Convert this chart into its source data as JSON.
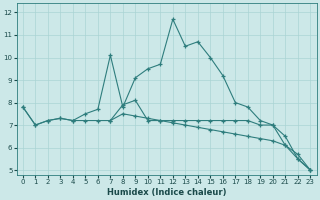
{
  "xlabel": "Humidex (Indice chaleur)",
  "bg_color": "#cce8e8",
  "line_color": "#2e7d7d",
  "grid_color": "#aad4d4",
  "xlim": [
    -0.5,
    23.5
  ],
  "ylim": [
    4.8,
    12.4
  ],
  "yticks": [
    5,
    6,
    7,
    8,
    9,
    10,
    11,
    12
  ],
  "xticks": [
    0,
    1,
    2,
    3,
    4,
    5,
    6,
    7,
    8,
    9,
    10,
    11,
    12,
    13,
    14,
    15,
    16,
    17,
    18,
    19,
    20,
    21,
    22,
    23
  ],
  "series1_x": [
    0,
    1,
    2,
    3,
    4,
    5,
    6,
    7,
    8,
    9,
    10,
    11,
    12,
    13,
    14,
    15,
    16,
    17,
    18,
    19,
    20,
    21,
    22,
    23
  ],
  "series1_y": [
    7.8,
    7.0,
    7.2,
    7.3,
    7.2,
    7.5,
    7.7,
    10.1,
    7.8,
    9.1,
    9.5,
    9.7,
    11.7,
    10.5,
    10.7,
    10.0,
    9.2,
    8.0,
    7.8,
    7.2,
    7.0,
    6.1,
    5.5,
    5.0
  ],
  "series2_x": [
    0,
    1,
    2,
    3,
    4,
    5,
    6,
    7,
    8,
    9,
    10,
    11,
    12,
    13,
    14,
    15,
    16,
    17,
    18,
    19,
    20,
    21,
    22,
    23
  ],
  "series2_y": [
    7.8,
    7.0,
    7.2,
    7.3,
    7.2,
    7.2,
    7.2,
    7.2,
    7.9,
    8.1,
    7.2,
    7.2,
    7.2,
    7.2,
    7.2,
    7.2,
    7.2,
    7.2,
    7.2,
    7.0,
    7.0,
    6.5,
    5.5,
    5.0
  ],
  "series3_x": [
    7,
    8,
    9,
    10,
    11,
    12,
    13,
    14,
    15,
    16,
    17,
    18,
    19,
    20,
    21,
    22,
    23
  ],
  "series3_y": [
    7.2,
    7.5,
    7.4,
    7.3,
    7.2,
    7.1,
    7.0,
    6.9,
    6.8,
    6.7,
    6.6,
    6.5,
    6.4,
    6.3,
    6.1,
    5.7,
    5.0
  ]
}
